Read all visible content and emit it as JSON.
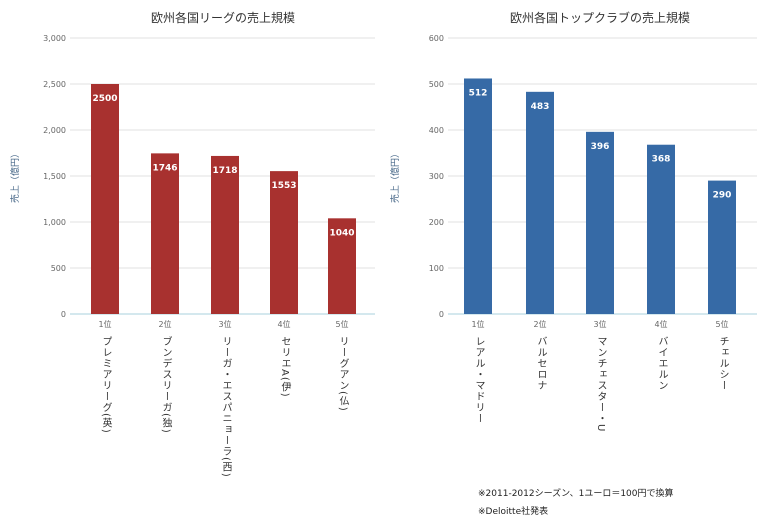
{
  "chart_data": [
    {
      "type": "bar",
      "title": "欧州各国リーグの売上規模",
      "ylabel": "売上（億円）",
      "ylim": [
        0,
        3000
      ],
      "yticks": [
        "0",
        "500",
        "1,000",
        "1,500",
        "2,000",
        "2,500",
        "3,000"
      ],
      "ytick_values": [
        0,
        500,
        1000,
        1500,
        2000,
        2500,
        3000
      ],
      "ranks": [
        "1位",
        "2位",
        "3位",
        "4位",
        "5位"
      ],
      "categories": [
        "プレミアリーグ(英)",
        "ブンデスリーガ(独)",
        "リーガ・エスパニョーラ(西)",
        "セリエA(伊)",
        "リーグアン(仏)"
      ],
      "values": [
        2500,
        1746,
        1718,
        1553,
        1040
      ],
      "value_labels": [
        "2500",
        "1746",
        "1718",
        "1553",
        "1040"
      ],
      "color": "#a8312f",
      "grid": true
    },
    {
      "type": "bar",
      "title": "欧州各国トップクラブの売上規模",
      "ylabel": "売上（億円）",
      "ylim": [
        0,
        600
      ],
      "yticks": [
        "0",
        "100",
        "200",
        "300",
        "400",
        "500",
        "600"
      ],
      "ytick_values": [
        0,
        100,
        200,
        300,
        400,
        500,
        600
      ],
      "ranks": [
        "1位",
        "2位",
        "3位",
        "4位",
        "5位"
      ],
      "categories": [
        "レアル・マドリー",
        "バルセロナ",
        "マンチェスター・U",
        "バイエルン",
        "チェルシー"
      ],
      "values": [
        512,
        483,
        396,
        368,
        290
      ],
      "value_labels": [
        "512",
        "483",
        "396",
        "368",
        "290"
      ],
      "color": "#366aa6",
      "grid": true
    }
  ],
  "notes": [
    "※2011-2012シーズン、1ユーロ＝100円で換算",
    "※Deloitte社発表"
  ]
}
